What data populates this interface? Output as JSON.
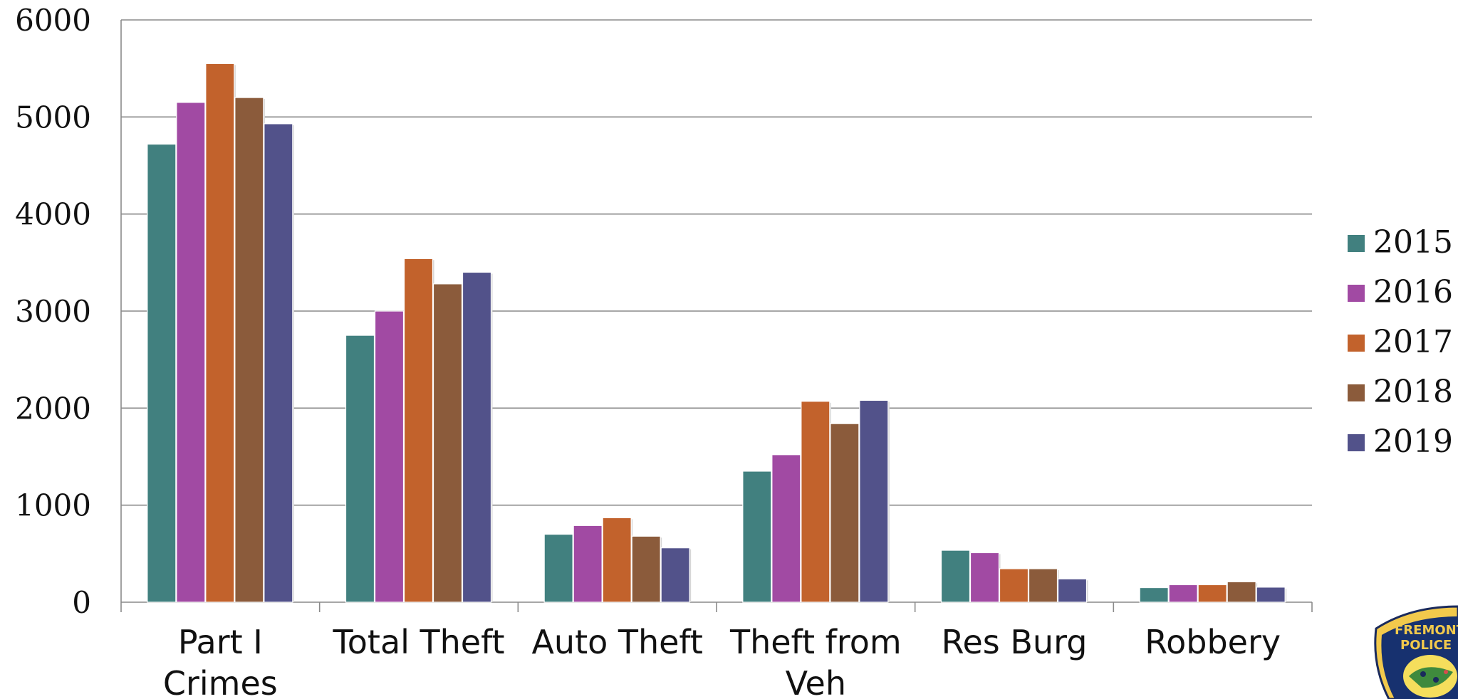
{
  "chart_data": {
    "type": "bar",
    "categories": [
      "Part I Crimes",
      "Total Theft",
      "Auto Theft",
      "Theft from Veh",
      "Res Burg",
      "Robbery"
    ],
    "series": [
      {
        "name": "2015",
        "color": "#41807f",
        "values": [
          4720,
          2750,
          700,
          1350,
          535,
          150
        ]
      },
      {
        "name": "2016",
        "color": "#a14aa3",
        "values": [
          5150,
          3000,
          790,
          1520,
          510,
          180
        ]
      },
      {
        "name": "2017",
        "color": "#c2622c",
        "values": [
          5550,
          3540,
          870,
          2070,
          345,
          180
        ]
      },
      {
        "name": "2018",
        "color": "#8b5b3b",
        "values": [
          5200,
          3280,
          680,
          1840,
          345,
          210
        ]
      },
      {
        "name": "2019",
        "color": "#52528a",
        "values": [
          4930,
          3400,
          560,
          2080,
          240,
          155
        ]
      }
    ],
    "yticks": [
      "0",
      "1000",
      "2000",
      "3000",
      "4000",
      "5000",
      "6000"
    ],
    "ylim": [
      0,
      6000
    ],
    "xlabel": "",
    "ylabel": "",
    "grid": true,
    "legend_position": "right",
    "badge_lettering": "FREMONT POLICE"
  }
}
